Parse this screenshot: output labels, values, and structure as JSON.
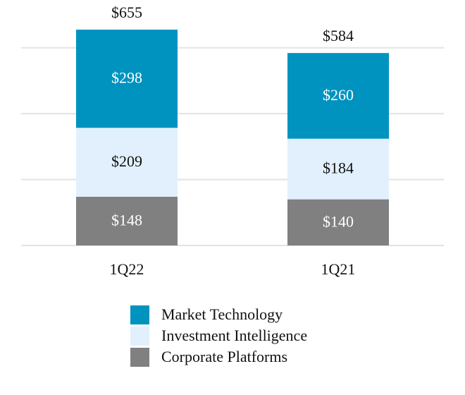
{
  "chart_data": {
    "type": "stacked_bar",
    "categories": [
      "1Q22",
      "1Q21"
    ],
    "series": [
      {
        "name": "Market Technology",
        "color": "#0093bf",
        "values": [
          298,
          260
        ],
        "value_labels": [
          "$298",
          "$260"
        ]
      },
      {
        "name": "Investment Intelligence",
        "color": "#e1f0fc",
        "values": [
          209,
          184
        ],
        "value_labels": [
          "$209",
          "$184"
        ]
      },
      {
        "name": "Corporate Platforms",
        "color": "#808080",
        "values": [
          148,
          140
        ],
        "value_labels": [
          "$148",
          "$140"
        ]
      }
    ],
    "totals": [
      655,
      584
    ],
    "total_labels": [
      "$655",
      "$584"
    ],
    "ylim": [
      0,
      700
    ],
    "yticks": [
      0,
      200,
      400,
      600
    ],
    "grid": true
  }
}
